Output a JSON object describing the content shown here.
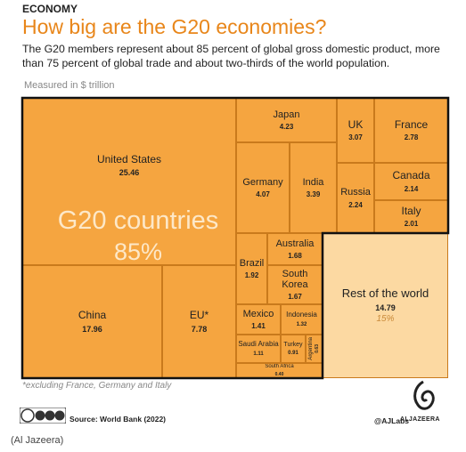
{
  "header": {
    "kicker": "ECONOMY",
    "title": "How big are the G20 economies?",
    "subtitle": "The G20 members represent about 85 percent of global gross domestic product, more than 75 percent of global trade and about two-thirds of the world population.",
    "unit_note": "Measured in $ trillion"
  },
  "chart_data": {
    "type": "treemap",
    "names": [
      "United States",
      "China",
      "EU*",
      "Japan",
      "Germany",
      "India",
      "UK",
      "France",
      "Russia",
      "Canada",
      "Italy",
      "Brazil",
      "Australia",
      "South Korea",
      "Mexico",
      "Indonesia",
      "Saudi Arabia",
      "Turkey",
      "Argentina",
      "South Africa",
      "Rest of the world"
    ],
    "values": [
      25.46,
      17.96,
      7.78,
      4.23,
      4.07,
      3.39,
      3.07,
      2.78,
      2.24,
      2.14,
      2.01,
      1.92,
      1.68,
      1.67,
      1.41,
      1.32,
      1.11,
      0.91,
      0.63,
      0.4,
      14.79
    ],
    "value_labels": [
      "25.46",
      "17.96",
      "7.78",
      "4.23",
      "4.07",
      "3.39",
      "3.07",
      "2.78",
      "2.24",
      "2.14",
      "2.01",
      "1.92",
      "1.68",
      "1.67",
      "1.41",
      "1.32",
      "1.11",
      "0.91",
      "0.63",
      "0.40",
      "14.79"
    ],
    "colors": {
      "g20": "#f5a540",
      "rest": "#fcd9a2"
    },
    "groups": [
      {
        "name": "G20 countries",
        "share": 85,
        "share_label": "85%"
      },
      {
        "name": "Rest of the world",
        "share": 15,
        "share_label": "15%"
      }
    ]
  },
  "footer": {
    "footnote": "*excluding France, Germany and Italy",
    "source": "Source: World Bank (2022)",
    "handle": "@AJLabs",
    "brand": "ALJAZEERA",
    "credit": "(Al Jazeera)"
  }
}
